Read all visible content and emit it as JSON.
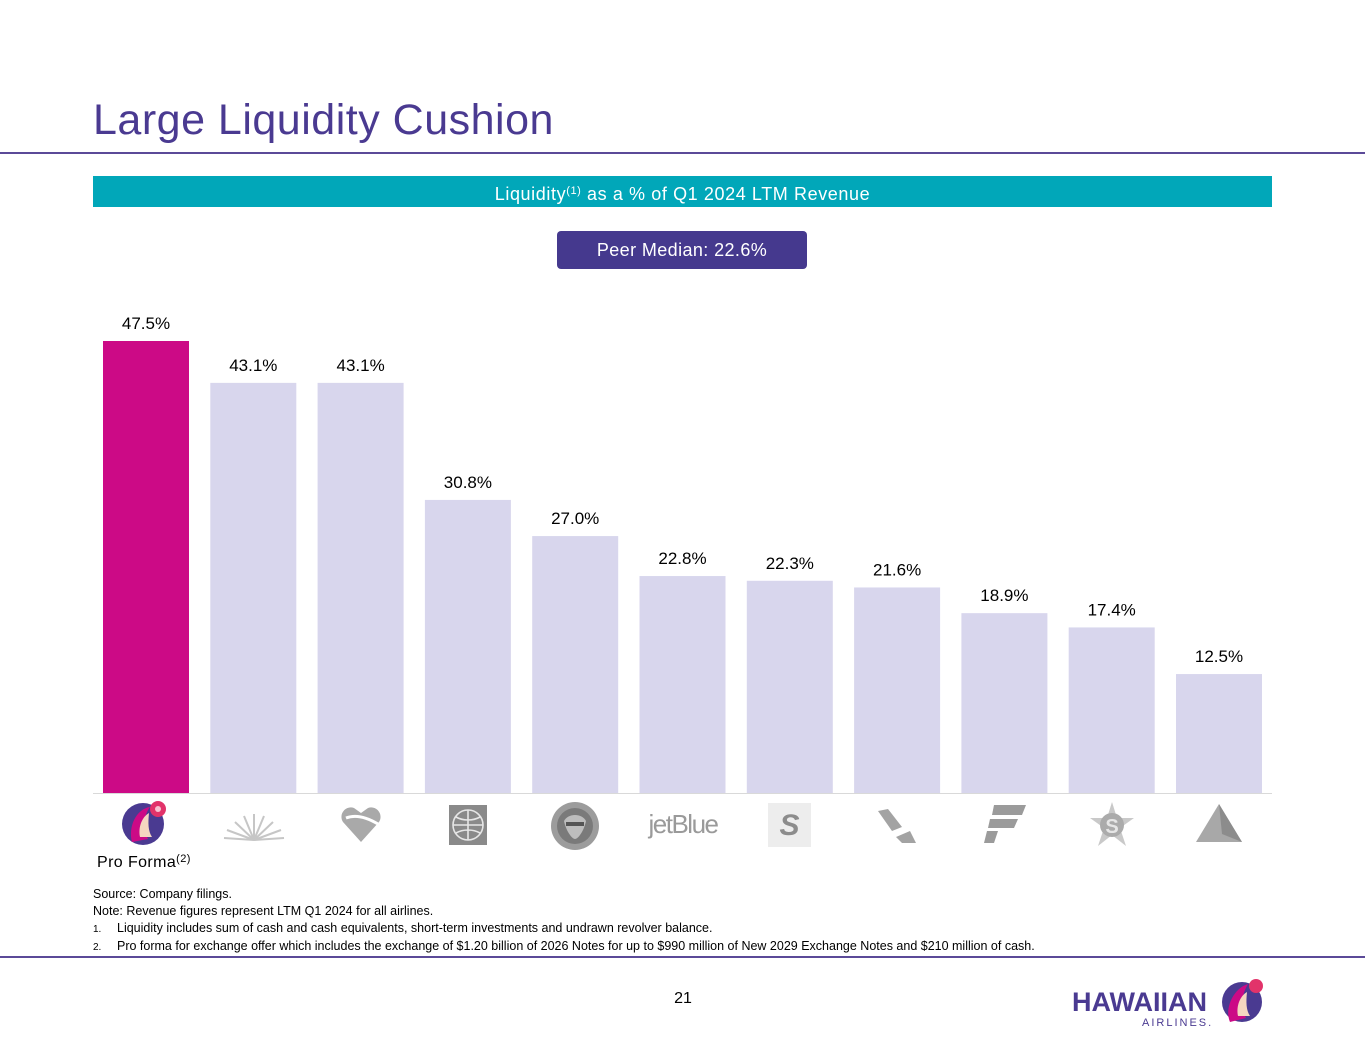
{
  "page": {
    "title": "Large Liquidity Cushion",
    "page_number": "21"
  },
  "banner": {
    "text_before": "Liquidity",
    "superscript": "(1)",
    "text_after": " as a % of Q1 2024 LTM Revenue"
  },
  "median_badge": "Peer Median: 22.6%",
  "pro_forma": {
    "label": "Pro Forma",
    "superscript": "(2)"
  },
  "notes": {
    "source": "Source: Company filings.",
    "note": "Note: Revenue figures represent LTM Q1 2024 for all airlines.",
    "footnotes": [
      {
        "num": "1.",
        "text": "Liquidity includes sum of cash and cash equivalents, short-term investments and undrawn revolver balance."
      },
      {
        "num": "2.",
        "text": "Pro forma for exchange offer which includes the exchange of $1.20 billion of 2026 Notes for up to $990 million of New 2029 Exchange Notes and $210 million of cash."
      }
    ]
  },
  "brand": {
    "name": "HAWAIIAN",
    "sub": "AIRLINES."
  },
  "chart_data": {
    "type": "bar",
    "categories": [
      "hawaiian-logo",
      "alaska-logo",
      "southwest-logo",
      "united-logo",
      "allegiant-logo",
      "jetblue-logo",
      "spirit-logo",
      "sun-country-logo",
      "frontier-logo",
      "skywest-logo",
      "delta-logo"
    ],
    "values": [
      47.5,
      43.1,
      43.1,
      30.8,
      27.0,
      22.8,
      22.3,
      21.6,
      18.9,
      17.4,
      12.5
    ],
    "labels": [
      "47.5%",
      "43.1%",
      "43.1%",
      "30.8%",
      "27.0%",
      "22.8%",
      "22.3%",
      "21.6%",
      "18.9%",
      "17.4%",
      "12.5%"
    ],
    "title": "",
    "xlabel": "",
    "ylabel": "",
    "ylim": [
      0,
      47.5
    ],
    "grid": false,
    "logo_text": {
      "jetblue": "jetBlue"
    },
    "colors": {
      "highlight": "#cc0a86",
      "peer": "#d8d6ed",
      "axis": "#d9d9d9"
    }
  }
}
